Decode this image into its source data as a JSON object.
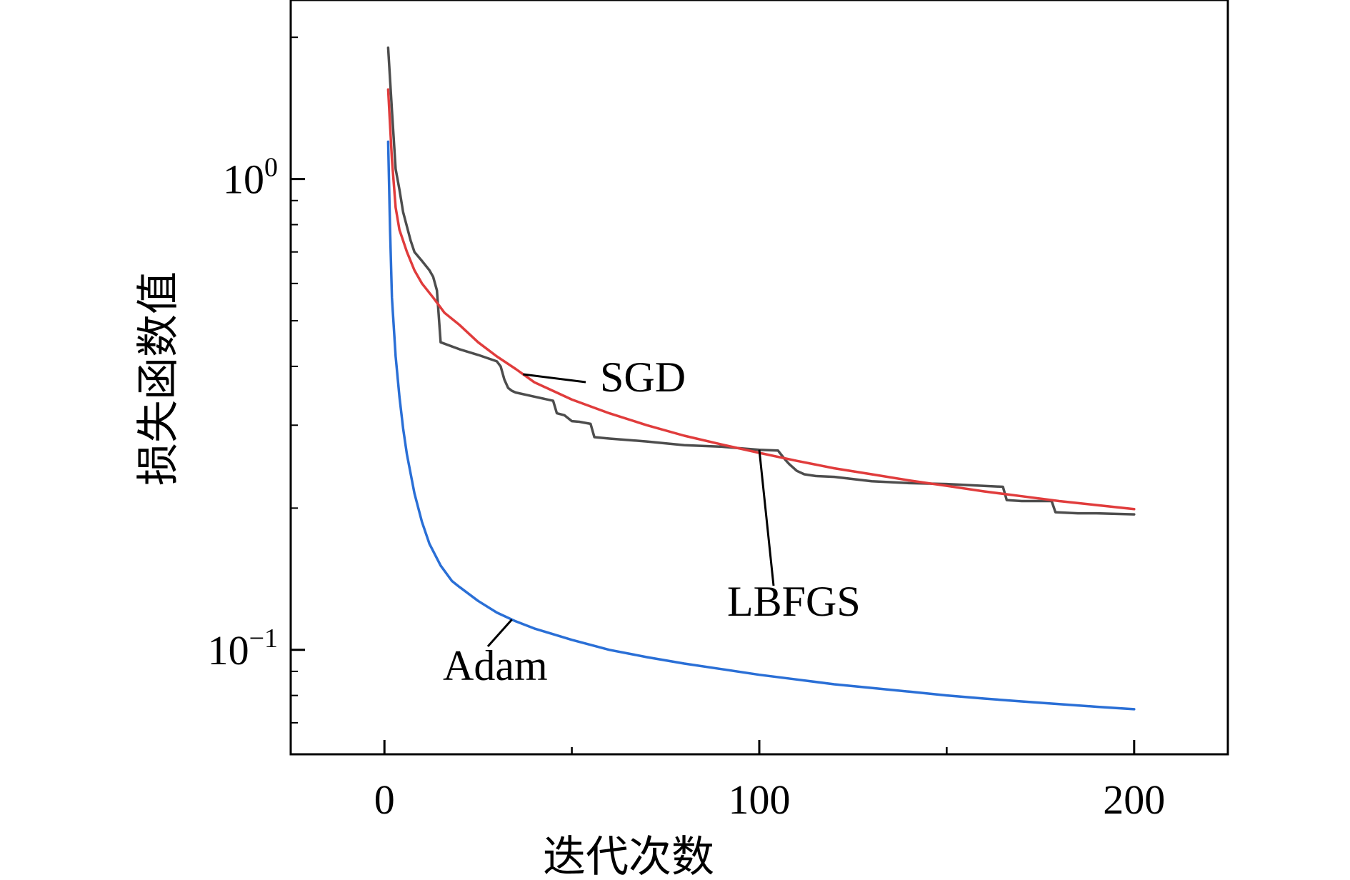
{
  "chart_data": {
    "type": "line",
    "xlabel": "迭代次数",
    "ylabel": "损失函数值",
    "xlim": [
      -25,
      225
    ],
    "xticks": [
      0,
      100,
      200
    ],
    "xtick_labels": [
      "0",
      "100",
      "200"
    ],
    "xminor_ticks": [
      50,
      150
    ],
    "yscale": "log",
    "ylim": [
      0.06,
      2.4
    ],
    "yticks": [
      1,
      0.1
    ],
    "ytick_labels": [
      {
        "base": "10",
        "exp": "0"
      },
      {
        "base": "10",
        "exp": "−1"
      }
    ],
    "grid": false,
    "legend": "none",
    "series": [
      {
        "name": "SGD",
        "color": "#e03c3c",
        "x": [
          1,
          2,
          3,
          4,
          6,
          8,
          10,
          13,
          16,
          20,
          25,
          30,
          35,
          40,
          50,
          60,
          70,
          80,
          90,
          100,
          110,
          120,
          130,
          140,
          150,
          160,
          170,
          180,
          190,
          200
        ],
        "y": [
          1.55,
          1.1,
          0.87,
          0.78,
          0.7,
          0.64,
          0.6,
          0.56,
          0.52,
          0.49,
          0.45,
          0.42,
          0.395,
          0.37,
          0.34,
          0.318,
          0.3,
          0.285,
          0.273,
          0.262,
          0.252,
          0.243,
          0.236,
          0.229,
          0.223,
          0.217,
          0.212,
          0.207,
          0.203,
          0.199
        ]
      },
      {
        "name": "LBFGS",
        "color": "#4d4d4d",
        "x": [
          1,
          2,
          3,
          4,
          5,
          7,
          8,
          10,
          12,
          13,
          14,
          15,
          20,
          25,
          30,
          31,
          32,
          33,
          34,
          35,
          40,
          45,
          46,
          48,
          50,
          52,
          55,
          56,
          60,
          70,
          80,
          90,
          95,
          100,
          105,
          107,
          108,
          110,
          112,
          115,
          120,
          130,
          140,
          150,
          160,
          165,
          166,
          170,
          175,
          178,
          179,
          185,
          190,
          200
        ],
        "y": [
          1.9,
          1.4,
          1.05,
          0.95,
          0.85,
          0.74,
          0.7,
          0.67,
          0.64,
          0.62,
          0.58,
          0.45,
          0.435,
          0.423,
          0.41,
          0.4,
          0.375,
          0.36,
          0.355,
          0.352,
          0.345,
          0.338,
          0.318,
          0.315,
          0.306,
          0.305,
          0.302,
          0.283,
          0.281,
          0.277,
          0.272,
          0.27,
          0.268,
          0.266,
          0.265,
          0.253,
          0.248,
          0.24,
          0.236,
          0.234,
          0.233,
          0.228,
          0.226,
          0.225,
          0.223,
          0.222,
          0.208,
          0.207,
          0.207,
          0.207,
          0.196,
          0.195,
          0.195,
          0.194
        ]
      },
      {
        "name": "Adam",
        "color": "#2a6fd6",
        "x": [
          1,
          1.5,
          2,
          3,
          4,
          5,
          6,
          8,
          10,
          12,
          15,
          18,
          20,
          25,
          30,
          35,
          40,
          50,
          60,
          70,
          80,
          90,
          100,
          110,
          120,
          130,
          140,
          150,
          160,
          170,
          180,
          190,
          200
        ],
        "y": [
          1.2,
          0.78,
          0.56,
          0.42,
          0.345,
          0.295,
          0.26,
          0.215,
          0.187,
          0.168,
          0.151,
          0.14,
          0.136,
          0.127,
          0.12,
          0.115,
          0.111,
          0.105,
          0.1,
          0.0965,
          0.0935,
          0.091,
          0.0885,
          0.0865,
          0.0845,
          0.083,
          0.0815,
          0.08,
          0.0788,
          0.0777,
          0.0767,
          0.0757,
          0.0748
        ]
      }
    ],
    "annotations": [
      {
        "text": "SGD",
        "series": "SGD"
      },
      {
        "text": "LBFGS",
        "series": "LBFGS"
      },
      {
        "text": "Adam",
        "series": "Adam"
      }
    ]
  }
}
